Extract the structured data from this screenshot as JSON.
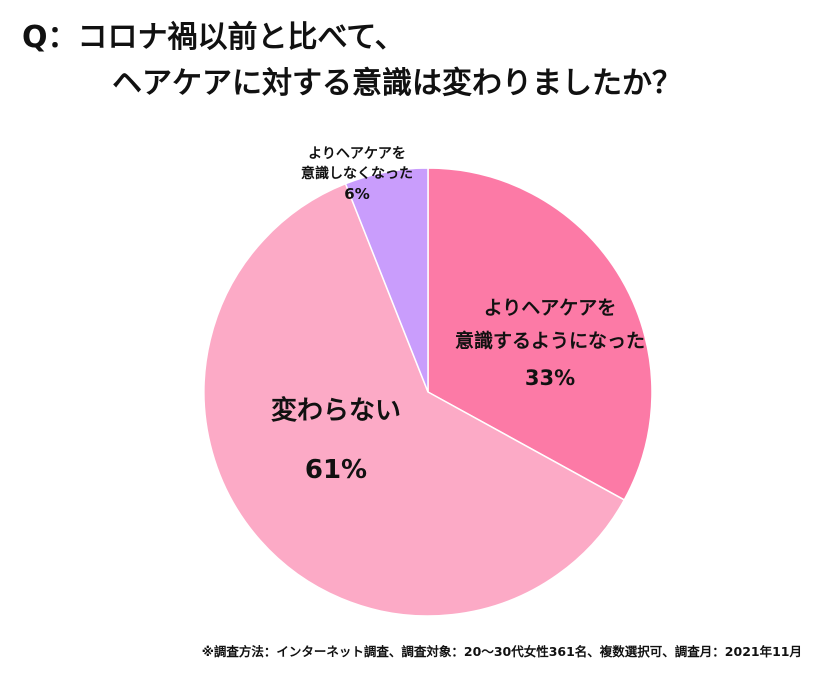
{
  "chart_data": {
    "type": "pie",
    "title_lines": [
      "Q：コロナ禍以前と比べて、",
      "ヘアケアに対する意識は変わりましたか？"
    ],
    "slices": [
      {
        "label_lines": [
          "よりヘアケアを",
          "意識するようになった"
        ],
        "value": 33,
        "value_label": "33%",
        "color": "#fc7aa6"
      },
      {
        "label_lines": [
          "変わらない"
        ],
        "value": 61,
        "value_label": "61%",
        "color": "#fcaac6"
      },
      {
        "label_lines": [
          "よりヘアケアを",
          "意識しなくなった"
        ],
        "value": 6,
        "value_label": "6%",
        "color": "#c99dfc"
      }
    ],
    "start_angle_deg": 0,
    "direction": "clockwise",
    "legend": "none",
    "labels_placement": "on-slices"
  },
  "footnote": "※調査方法：インターネット調査、調査対象：20〜30代女性361名、複数選択可、調査月：2021年11月"
}
